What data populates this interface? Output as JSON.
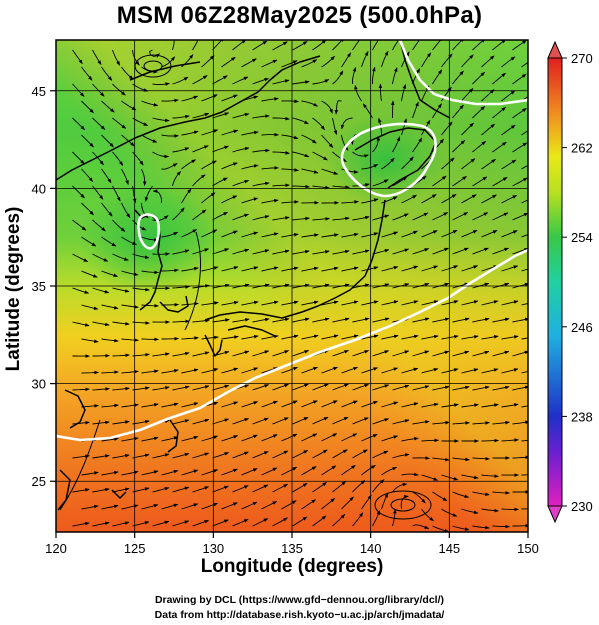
{
  "title": "MSM 06Z28May2025 (500.0hPa)",
  "credits": {
    "line1": "Drawing by DCL (https://www.gfd−dennou.org/library/dcl/)",
    "line2": "Data from http://database.rish.kyoto−u.ac.jp/arch/jmadata/"
  },
  "chart_data": {
    "type": "heatmap",
    "title": "MSM 06Z28May2025 (500.0hPa)",
    "xlabel": "Longitude (degrees)",
    "ylabel": "Latitude  (degrees)",
    "xlim": [
      120,
      150
    ],
    "ylim": [
      22.4,
      47.6
    ],
    "x_ticks": [
      120,
      125,
      130,
      135,
      140,
      145,
      150
    ],
    "y_ticks": [
      25,
      30,
      35,
      40,
      45
    ],
    "grid": true,
    "colorbar": {
      "min": 230,
      "max": 270,
      "ticks": [
        230,
        238,
        246,
        254,
        262,
        270
      ],
      "colors": [
        "#e020c0",
        "#2030c8",
        "#1fb0e0",
        "#38c848",
        "#e8e818",
        "#f08020",
        "#e02020"
      ],
      "placement": "right"
    },
    "contour_white_value": 254,
    "features": [
      {
        "kind": "cold-low",
        "lon": 126.2,
        "lat": 38.6
      },
      {
        "kind": "cold-low",
        "lon": 139.6,
        "lat": 42.0
      },
      {
        "kind": "vortex",
        "lon": 126.0,
        "lat": 46.8
      },
      {
        "kind": "anticyclone",
        "lon": 142.0,
        "lat": 24.5
      }
    ]
  }
}
